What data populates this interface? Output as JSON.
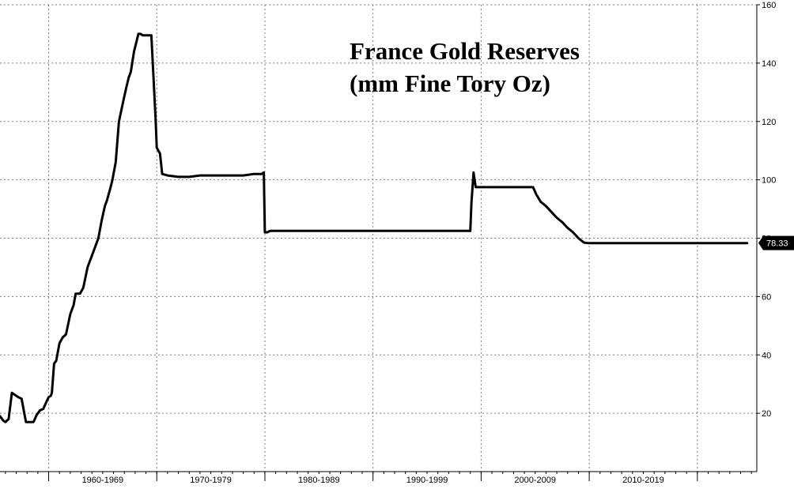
{
  "chart_data": {
    "type": "line",
    "title_lines": [
      "France Gold Reserves",
      "(mm Fine Tory Oz)"
    ],
    "xlabel": "",
    "ylabel": "",
    "x_range": [
      1955.5,
      2025.5
    ],
    "ylim": [
      0,
      160
    ],
    "y_ticks": [
      20,
      40,
      60,
      80,
      100,
      120,
      140,
      160
    ],
    "y_axis_position": "right",
    "x_categories": [
      {
        "label": "1960-1969",
        "start": 1960,
        "end": 1970
      },
      {
        "label": "1970-1979",
        "start": 1970,
        "end": 1980
      },
      {
        "label": "1980-1989",
        "start": 1980,
        "end": 1990
      },
      {
        "label": "1990-1999",
        "start": 1990,
        "end": 2000
      },
      {
        "label": "2000-2009",
        "start": 2000,
        "end": 2010
      },
      {
        "label": "2010-2019",
        "start": 2010,
        "end": 2020
      }
    ],
    "grid": true,
    "last_value_label": "78.33",
    "series": [
      {
        "x": [
          1955.5,
          1955.8,
          1956.0,
          1956.3,
          1956.6,
          1957.2,
          1957.5,
          1957.9,
          1958.3,
          1958.6,
          1958.9,
          1959.2,
          1959.5,
          1959.8,
          1960.0,
          1960.2,
          1960.3,
          1960.5,
          1960.7,
          1961.0,
          1961.3,
          1961.6,
          1962.0,
          1962.3,
          1962.5,
          1962.9,
          1963.2,
          1963.6,
          1964.0,
          1964.3,
          1964.6,
          1964.9,
          1965.2,
          1965.4,
          1965.7,
          1965.9,
          1966.0,
          1966.2,
          1966.5,
          1966.9,
          1967.2,
          1967.4,
          1967.6,
          1967.9,
          1968.3,
          1968.5,
          1968.7,
          1968.9,
          1969.5,
          1969.7,
          1969.9,
          1970.0,
          1970.3,
          1970.5,
          1971,
          1972,
          1973,
          1974,
          1975,
          1976,
          1977,
          1978,
          1979,
          1979.7,
          1979.9,
          1980.0,
          1980.2,
          1980.5,
          1981,
          1985,
          1990,
          1995,
          1998.9,
          1999.0,
          1999.1,
          1999.3,
          1999.5,
          2000,
          2001,
          2002,
          2003,
          2004.5,
          2004.8,
          2005.1,
          2005.5,
          2006.0,
          2006.5,
          2007.0,
          2007.5,
          2008.0,
          2008.5,
          2009.0,
          2009.5,
          2009.9,
          2010.5,
          2012,
          2015,
          2018,
          2021,
          2024.6
        ],
        "values": [
          19,
          17.5,
          17,
          18,
          27,
          25.5,
          25,
          17,
          17,
          17,
          19.5,
          21,
          21.5,
          24,
          25.5,
          26,
          27,
          37,
          38,
          44,
          46,
          47,
          54,
          57,
          61,
          61,
          63,
          70,
          74,
          77,
          80,
          86,
          91,
          93,
          97,
          100,
          102,
          106,
          120,
          127,
          132,
          135,
          137,
          144,
          150,
          150,
          149.5,
          149.5,
          149.5,
          135,
          120,
          111,
          109,
          102,
          101.5,
          101,
          101,
          101.5,
          101.5,
          101.5,
          101.5,
          101.5,
          102,
          102,
          102.5,
          82,
          82,
          82.5,
          82.5,
          82.5,
          82.5,
          82.5,
          82.5,
          82.5,
          92,
          102.5,
          97.5,
          97.5,
          97.5,
          97.5,
          97.5,
          97.5,
          97.5,
          95,
          92.5,
          91,
          89,
          87,
          85.5,
          83.5,
          82,
          80,
          78.5,
          78.3,
          78.33,
          78.33,
          78.33,
          78.33,
          78.33,
          78.33
        ]
      }
    ]
  }
}
